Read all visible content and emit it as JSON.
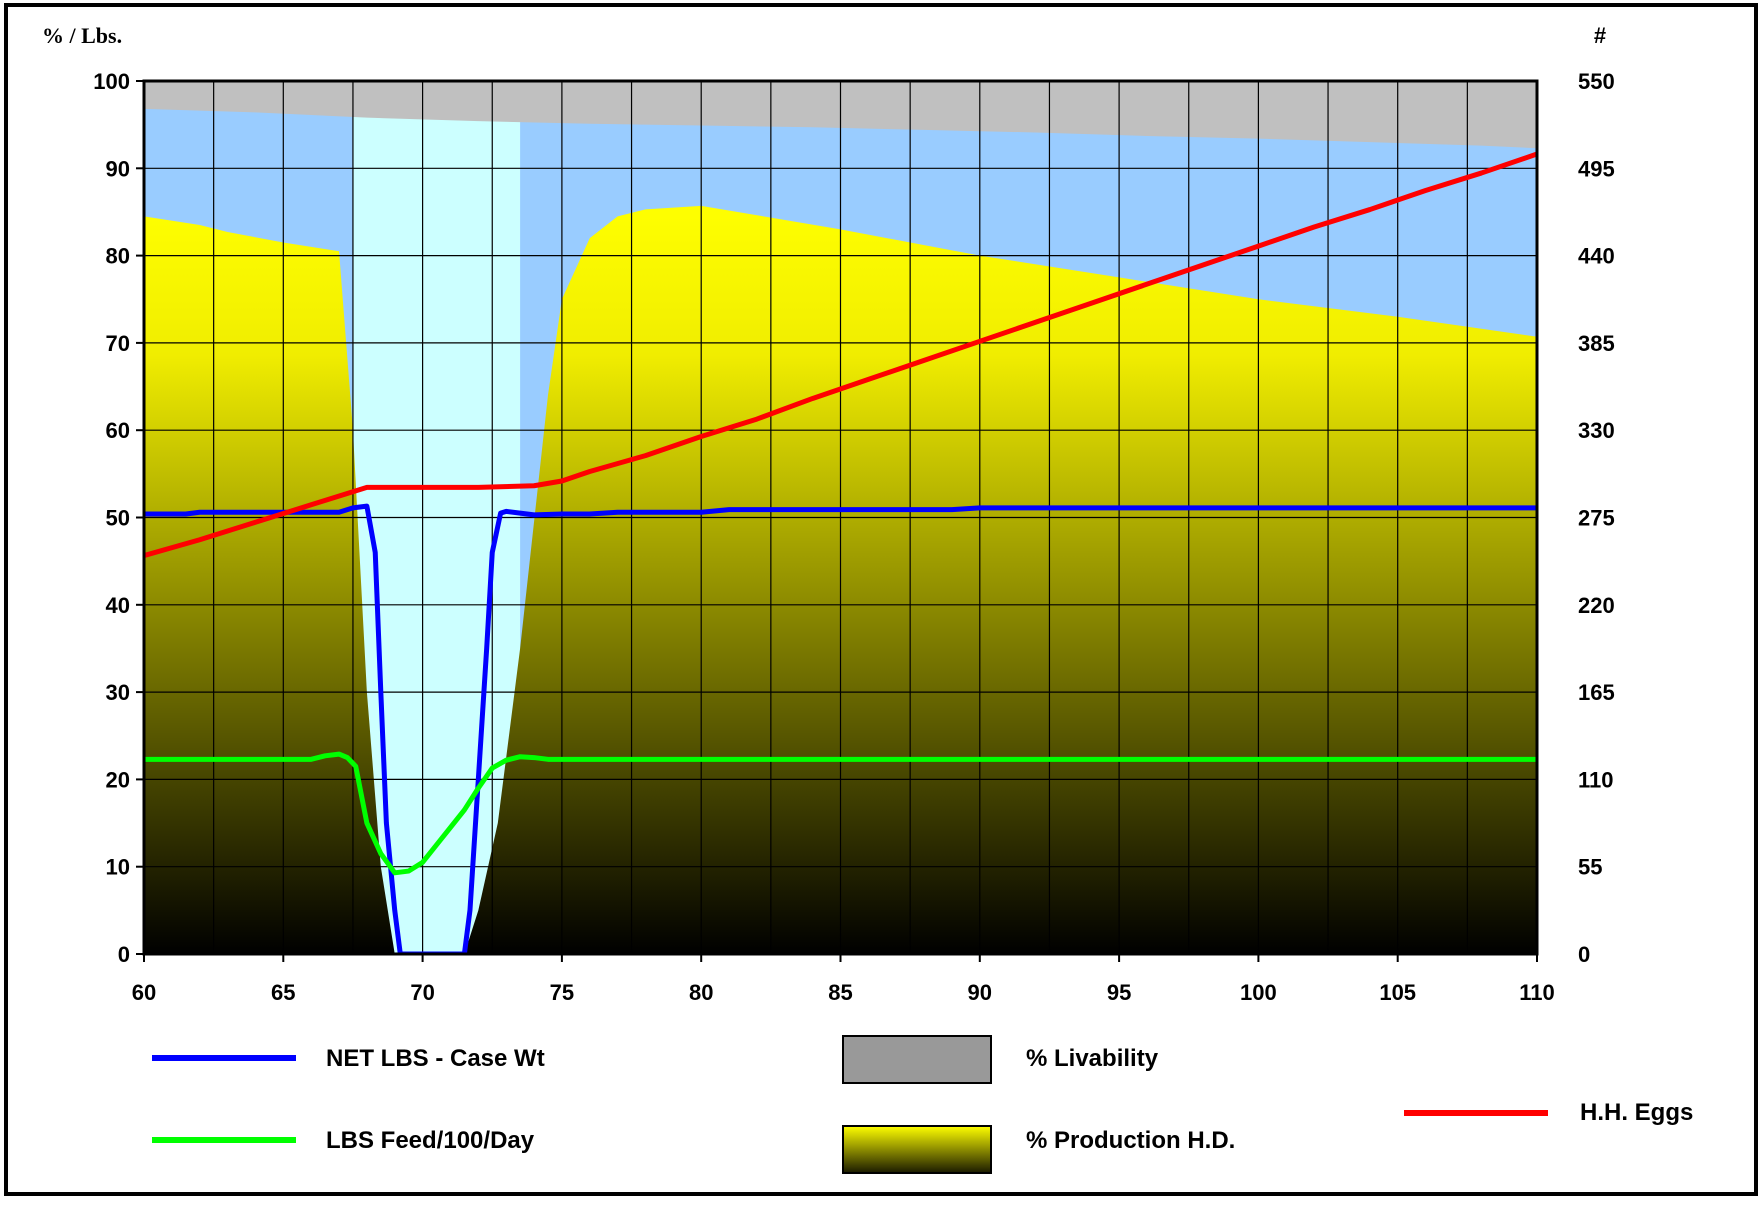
{
  "chart_data": {
    "type": "area",
    "left_axis_title": "%  / Lbs.",
    "right_axis_title": "#",
    "x_ticks": [
      "60",
      "65",
      "70",
      "75",
      "80",
      "85",
      "90",
      "95",
      "100",
      "105",
      "110"
    ],
    "y_left_ticks": [
      "0",
      "10",
      "20",
      "30",
      "40",
      "50",
      "60",
      "70",
      "80",
      "90",
      "100"
    ],
    "y_right_ticks": [
      "0",
      "55",
      "110",
      "165",
      "220",
      "275",
      "330",
      "385",
      "440",
      "495",
      "550"
    ],
    "xlim": [
      60,
      110
    ],
    "ylim_left": [
      0,
      100
    ],
    "ylim_right": [
      0,
      550
    ],
    "grid": true,
    "colors": {
      "livability": "#c0c0c0",
      "plot_bg": "#99ccff",
      "molt_bg": "#ccffff",
      "production_top": "#ffff00",
      "production_bottom": "#000000",
      "net_lbs": "#0000ff",
      "feed": "#00ff00",
      "hh_eggs": "#ff0000"
    },
    "series": [
      {
        "name": "% Livability",
        "kind": "area",
        "axis": "left",
        "x": [
          60,
          64,
          68,
          72,
          76,
          80,
          84,
          88,
          92,
          96,
          100,
          104,
          108,
          110
        ],
        "y": [
          96.8,
          96.4,
          95.8,
          95.4,
          95.1,
          94.9,
          94.7,
          94.4,
          94.1,
          93.7,
          93.4,
          93.0,
          92.6,
          92.3
        ]
      },
      {
        "name": "% Production H.D.",
        "kind": "area",
        "axis": "left",
        "x": [
          60,
          62,
          63,
          65,
          66,
          67,
          67.5,
          68,
          68.5,
          69,
          70,
          71,
          71.5,
          72,
          72.7,
          73.5,
          74.5,
          75,
          76,
          77,
          78,
          80,
          85,
          90,
          95,
          100,
          105,
          110
        ],
        "y": [
          84.5,
          83.5,
          82.7,
          81.5,
          81,
          80.5,
          60,
          30,
          10,
          0,
          0,
          0,
          0,
          5,
          15,
          35,
          64,
          75,
          82,
          84.5,
          85.3,
          85.7,
          83,
          80,
          77.5,
          75,
          73,
          70.7
        ]
      },
      {
        "name": "NET LBS - Case Wt",
        "kind": "line",
        "axis": "left",
        "x": [
          60,
          61.5,
          62,
          65,
          67,
          67.5,
          68,
          68.3,
          68.5,
          68.7,
          69,
          69.2,
          69.5,
          70,
          71,
          71.5,
          71.7,
          72,
          72.3,
          72.5,
          72.8,
          73,
          73.5,
          74,
          75,
          76,
          77,
          80,
          81,
          85,
          89,
          90,
          95,
          100,
          105,
          110
        ],
        "y": [
          50.4,
          50.4,
          50.6,
          50.6,
          50.6,
          51.1,
          51.3,
          46,
          30,
          15,
          5,
          0,
          0,
          0,
          0,
          0,
          5,
          20,
          35,
          46,
          50.5,
          50.7,
          50.5,
          50.3,
          50.4,
          50.4,
          50.6,
          50.6,
          50.9,
          50.9,
          50.9,
          51.1,
          51.1,
          51.1,
          51.1,
          51.1
        ]
      },
      {
        "name": "LBS Feed/100/Day",
        "kind": "line",
        "axis": "left",
        "x": [
          60,
          66,
          66.5,
          67,
          67.3,
          67.6,
          68,
          68.5,
          69,
          69.5,
          70,
          70.5,
          71,
          71.5,
          72,
          72.5,
          73,
          73.5,
          74,
          74.5,
          75,
          80,
          90,
          100,
          110
        ],
        "y": [
          22.3,
          22.3,
          22.7,
          22.9,
          22.5,
          21.5,
          15,
          11.5,
          9.3,
          9.5,
          10.5,
          12.5,
          14.5,
          16.5,
          19,
          21.3,
          22.2,
          22.6,
          22.5,
          22.3,
          22.3,
          22.3,
          22.3,
          22.3,
          22.3
        ]
      },
      {
        "name": "H.H. Eggs",
        "kind": "line",
        "axis": "right",
        "x": [
          60,
          62,
          64,
          66,
          68,
          70,
          72,
          74,
          75,
          76,
          78,
          80,
          82,
          84,
          86,
          88,
          90,
          92,
          94,
          96,
          98,
          100,
          102,
          104,
          106,
          108,
          110
        ],
        "y": [
          251,
          261,
          272,
          283,
          294,
          294,
          294,
          295,
          298,
          304,
          314,
          326,
          337,
          350,
          362,
          374,
          386,
          398,
          410,
          422,
          434,
          446,
          458,
          469,
          481,
          492,
          504
        ]
      }
    ],
    "legend": [
      {
        "label": "NET LBS - Case Wt",
        "kind": "line",
        "color": "#0000ff"
      },
      {
        "label": "% Livability",
        "kind": "box",
        "color": "#999999"
      },
      {
        "label": "H.H. Eggs",
        "kind": "line",
        "color": "#ff0000"
      },
      {
        "label": "LBS Feed/100/Day",
        "kind": "line",
        "color": "#00ff00"
      },
      {
        "label": "% Production H.D.",
        "kind": "gradient-box",
        "color": "#ffff00"
      }
    ]
  }
}
